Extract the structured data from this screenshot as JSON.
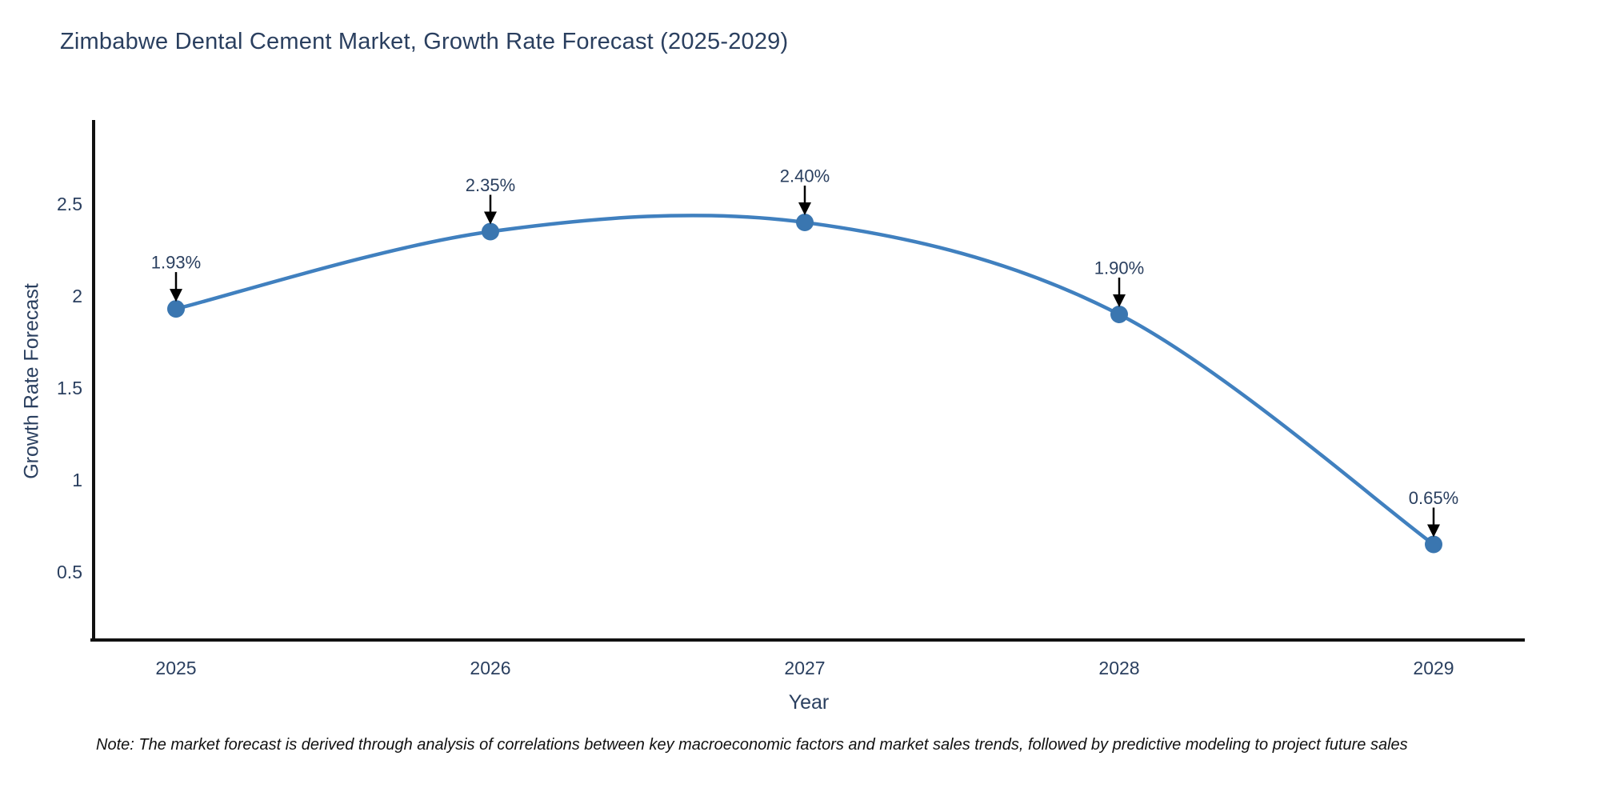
{
  "title": "Zimbabwe Dental Cement Market, Growth Rate Forecast (2025-2029)",
  "note": "Note: The market forecast is derived through analysis of correlations between key macroeconomic factors and market sales trends, followed by predictive modeling to project future sales",
  "chart_data": {
    "type": "line",
    "line_shape": "spline",
    "title": "Zimbabwe Dental Cement Market, Growth Rate Forecast (2025-2029)",
    "xlabel": "Year",
    "ylabel": "Growth Rate Forecast",
    "x": [
      2025,
      2026,
      2027,
      2028,
      2029
    ],
    "values": [
      1.93,
      2.35,
      2.4,
      1.9,
      0.65
    ],
    "point_labels": [
      "1.93%",
      "2.35%",
      "2.40%",
      "1.90%",
      "0.65%"
    ],
    "xtick_labels": [
      "2025",
      "2026",
      "2027",
      "2028",
      "2029"
    ],
    "ytick_values": [
      0.5,
      1,
      1.5,
      2,
      2.5
    ],
    "ytick_labels": [
      "0.5",
      "1",
      "1.5",
      "2",
      "2.5"
    ],
    "xlim": [
      2024.74,
      2029.29
    ],
    "ylim": [
      0.13,
      2.96
    ],
    "grid": false,
    "legend_position": "none",
    "colors": {
      "line": "#4080bf",
      "marker": "#3a76b0",
      "axis_line": "#111111",
      "tick_text": "#2a3f5f",
      "annotation_text": "#2a3f5f",
      "annotation_arrow": "#000000",
      "note_text": "#111111",
      "background": "#ffffff"
    }
  }
}
